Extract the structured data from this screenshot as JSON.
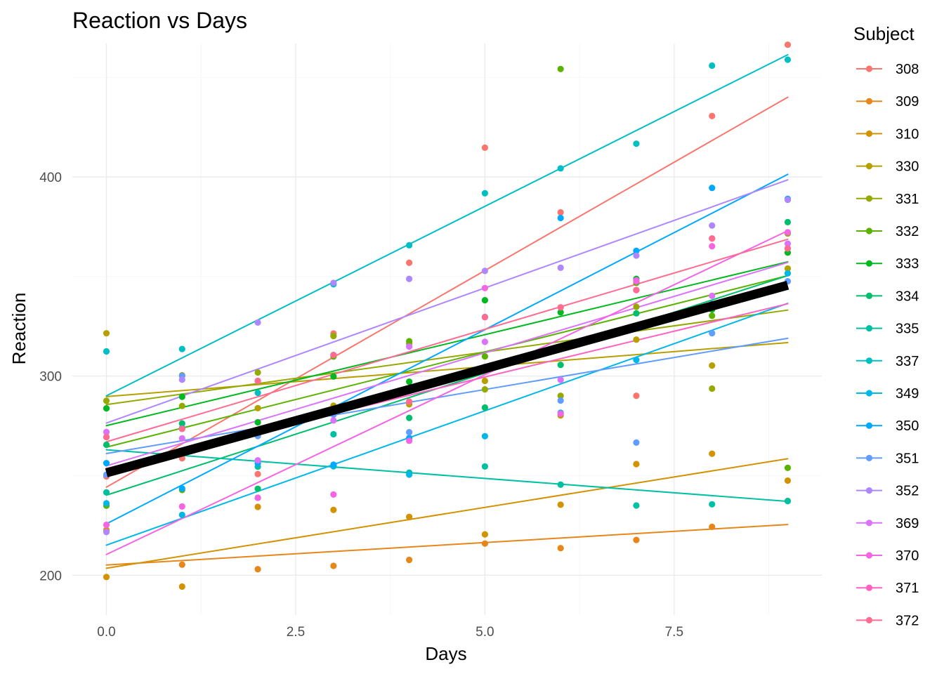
{
  "chart_data": {
    "type": "scatter",
    "title": "Reaction vs Days",
    "xlabel": "Days",
    "ylabel": "Reaction",
    "xlim": [
      -0.45,
      9.45
    ],
    "ylim": [
      180,
      467
    ],
    "x_ticks": [
      0,
      2.5,
      5,
      7.5
    ],
    "x_tick_labels": [
      "0.0",
      "2.5",
      "5.0",
      "7.5"
    ],
    "y_ticks": [
      200,
      300,
      400
    ],
    "y_tick_labels": [
      "200",
      "300",
      "400"
    ],
    "grid": true,
    "legend_title": "Subject",
    "legend_position": "right",
    "overall_fit": {
      "intercept": 251.4,
      "slope": 10.47,
      "color": "#000000"
    },
    "series": [
      {
        "name": "308",
        "color": "#F8766D",
        "values": [
          249.6,
          258.7,
          250.8,
          321.4,
          356.9,
          414.7,
          382.2,
          290.1,
          430.6,
          466.4
        ],
        "fit": {
          "intercept": 244.2,
          "slope": 21.76
        }
      },
      {
        "name": "309",
        "color": "#E7861B",
        "values": [
          222.7,
          205.3,
          203.0,
          204.7,
          207.7,
          215.9,
          213.6,
          217.7,
          224.3,
          237.3
        ],
        "fit": {
          "intercept": 205.1,
          "slope": 2.26
        }
      },
      {
        "name": "310",
        "color": "#D39200",
        "values": [
          199.1,
          194.3,
          234.3,
          232.8,
          229.3,
          220.5,
          235.4,
          255.8,
          261.0,
          247.5
        ],
        "fit": {
          "intercept": 203.5,
          "slope": 6.11
        }
      },
      {
        "name": "330",
        "color": "#B79F00",
        "values": [
          321.5,
          300.4,
          283.9,
          285.1,
          285.8,
          297.6,
          280.2,
          318.3,
          305.3,
          354.0
        ],
        "fit": {
          "intercept": 289.7,
          "slope": 3.01
        }
      },
      {
        "name": "331",
        "color": "#95A900",
        "values": [
          287.6,
          285.0,
          301.8,
          320.1,
          316.3,
          293.3,
          290.1,
          334.8,
          293.7,
          371.6
        ],
        "fit": {
          "intercept": 285.7,
          "slope": 5.27
        }
      },
      {
        "name": "332",
        "color": "#5BB300",
        "values": [
          234.9,
          242.8,
          272.9,
          309.8,
          317.5,
          309.9,
          454.2,
          346.8,
          330.3,
          253.9
        ],
        "fit": {
          "intercept": 264.3,
          "slope": 9.57
        }
      },
      {
        "name": "333",
        "color": "#00B81F",
        "values": [
          283.8,
          289.6,
          276.8,
          299.8,
          297.2,
          338.1,
          332.0,
          348.8,
          333.4,
          362.0
        ],
        "fit": {
          "intercept": 275.1,
          "slope": 9.14
        }
      },
      {
        "name": "334",
        "color": "#00BE6C",
        "values": [
          265.5,
          276.2,
          243.4,
          254.7,
          279.0,
          284.2,
          305.6,
          331.5,
          335.8,
          377.3
        ],
        "fit": {
          "intercept": 240.2,
          "slope": 12.25
        }
      },
      {
        "name": "335",
        "color": "#00C0A3",
        "values": [
          241.6,
          273.9,
          254.5,
          270.8,
          251.5,
          254.6,
          245.5,
          235.0,
          235.6,
          237.2
        ],
        "fit": {
          "intercept": 263.0,
          "slope": -2.88
        }
      },
      {
        "name": "337",
        "color": "#00BFC4",
        "values": [
          312.4,
          313.6,
          291.6,
          346.1,
          365.7,
          391.8,
          404.3,
          416.7,
          455.9,
          458.9
        ],
        "fit": {
          "intercept": 290.1,
          "slope": 19.03
        }
      },
      {
        "name": "349",
        "color": "#00B8E7",
        "values": [
          236.1,
          230.3,
          238.9,
          254.9,
          250.5,
          269.8,
          281.6,
          308.1,
          336.3,
          351.6
        ],
        "fit": {
          "intercept": 215.1,
          "slope": 13.49
        }
      },
      {
        "name": "350",
        "color": "#00A9FF",
        "values": [
          256.3,
          243.5,
          256.2,
          255.5,
          268.9,
          329.7,
          379.4,
          362.9,
          394.5,
          389.0
        ],
        "fit": {
          "intercept": 225.8,
          "slope": 19.5
        }
      },
      {
        "name": "351",
        "color": "#619CFF",
        "values": [
          250.5,
          300.1,
          269.9,
          280.6,
          271.8,
          304.6,
          287.7,
          266.6,
          321.5,
          347.6
        ],
        "fit": {
          "intercept": 261.1,
          "slope": 6.43
        }
      },
      {
        "name": "352",
        "color": "#AE87FF",
        "values": [
          221.7,
          298.2,
          326.9,
          346.8,
          348.8,
          352.8,
          354.4,
          360.5,
          375.6,
          388.5
        ],
        "fit": {
          "intercept": 276.4,
          "slope": 13.57
        }
      },
      {
        "name": "369",
        "color": "#DB72FB",
        "values": [
          271.9,
          268.7,
          257.7,
          277.7,
          314.8,
          317.2,
          298.1,
          348.1,
          340.3,
          366.5
        ],
        "fit": {
          "intercept": 254.9,
          "slope": 11.35
        }
      },
      {
        "name": "370",
        "color": "#F564E3",
        "values": [
          225.3,
          234.5,
          238.9,
          240.5,
          267.5,
          344.2,
          281.1,
          347.6,
          365.2,
          372.2
        ],
        "fit": {
          "intercept": 210.4,
          "slope": 18.06
        }
      },
      {
        "name": "371",
        "color": "#FF61C3",
        "values": [
          269.4,
          273.5,
          297.6,
          310.6,
          287.2,
          329.6,
          334.5,
          343.2,
          369.1,
          364.1
        ],
        "fit": {
          "intercept": 253.6,
          "slope": 9.19
        }
      },
      {
        "name": "372",
        "color": "#FF6C91",
        "values": [
          269.4,
          273.5,
          297.6,
          310.6,
          287.2,
          329.6,
          334.5,
          343.2,
          369.1,
          364.1
        ],
        "fit": {
          "intercept": 267.0,
          "slope": 11.3
        }
      }
    ]
  }
}
